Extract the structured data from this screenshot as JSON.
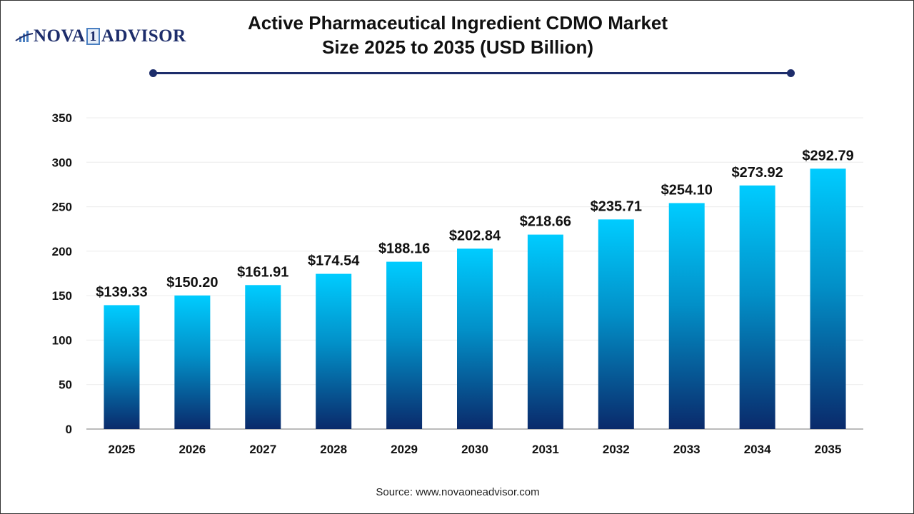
{
  "logo": {
    "text_left": "NOVA",
    "text_one": "1",
    "text_right": "ADVISOR"
  },
  "source": "Source: www.novaoneadvisor.com",
  "colors": {
    "bar_top": "#00ccff",
    "bar_bottom": "#0a2a6b",
    "title_rule": "#1d2d6b"
  },
  "chart_data": {
    "type": "bar",
    "title": "Active Pharmaceutical Ingredient CDMO Market Size 2025 to 2035 (USD Billion)",
    "title_lines": [
      "Active Pharmaceutical Ingredient CDMO Market",
      "Size 2025 to 2035 (USD Billion)"
    ],
    "categories": [
      "2025",
      "2026",
      "2027",
      "2028",
      "2029",
      "2030",
      "2031",
      "2032",
      "2033",
      "2034",
      "2035"
    ],
    "values": [
      139.33,
      150.2,
      161.91,
      174.54,
      188.16,
      202.84,
      218.66,
      235.71,
      254.1,
      273.92,
      292.79
    ],
    "data_labels": [
      "$139.33",
      "$150.20",
      "$161.91",
      "$174.54",
      "$188.16",
      "$202.84",
      "$218.66",
      "$235.71",
      "$254.10",
      "$273.92",
      "$292.79"
    ],
    "ylim": [
      0,
      350
    ],
    "yticks": [
      "0",
      "50",
      "100",
      "150",
      "200",
      "250",
      "300",
      "350"
    ],
    "xlabel": "",
    "ylabel": "",
    "grid": true,
    "legend": "none"
  }
}
